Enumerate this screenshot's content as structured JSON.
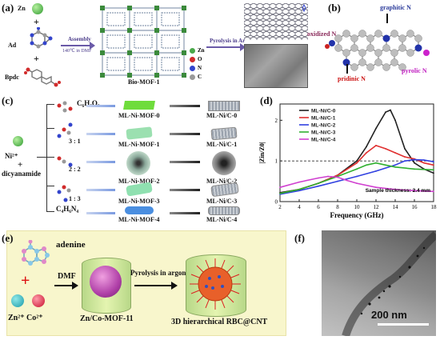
{
  "panel_labels": {
    "a": "(a)",
    "b": "(b)",
    "c": "(c)",
    "d": "(d)",
    "e": "(e)",
    "f": "(f)"
  },
  "panel_a": {
    "zn": "Zn",
    "ad": "Ad",
    "bpdc": "Bpdc",
    "assembly": "Assembly",
    "assembly_cond": "140℃ in DMF",
    "pyrolysis": "Pyrolysis in Ar",
    "mof_name": "Bio-MOF-1",
    "legend": [
      {
        "label": "Zn",
        "color": "#4aa84a"
      },
      {
        "label": "O",
        "color": "#d12b2b"
      },
      {
        "label": "N",
        "color": "#3344cc"
      },
      {
        "label": "C",
        "color": "#999999"
      }
    ]
  },
  "panel_b": {
    "graphitic": "graphitic N",
    "oxidized": "oxidized N",
    "pridinic": "pridinic N",
    "pyrolic": "pyrolic N"
  },
  "panel_c": {
    "ni": "Ni²⁺",
    "dicy": "dicyanamide",
    "top_formula": "C₆H₆O₆",
    "bottom_formula": "C₄H₆N₄",
    "ratios": [
      "3 : 1",
      "2 : 2",
      "1 : 3"
    ],
    "mofs": [
      "ML-Ni-MOF-0",
      "ML-Ni-MOF-1",
      "ML-Ni-MOF-2",
      "ML-Ni-MOF-3",
      "ML-Ni-MOF-4"
    ],
    "carbons": [
      "ML-Ni/C-0",
      "ML-Ni/C-1",
      "ML-Ni/C-2",
      "ML-Ni/C-3",
      "ML-Ni/C-4"
    ],
    "mof_colors": [
      "#6fdc3c",
      "#9be0b0",
      "#6a8a7a",
      "#8fe0b0",
      "#4a8ee0"
    ]
  },
  "chart_data": {
    "type": "line",
    "xlabel": "Frequency (GHz)",
    "ylabel": "|Zin/Z0|",
    "xlim": [
      2,
      18
    ],
    "ylim": [
      0,
      2.4
    ],
    "xticks": [
      2,
      4,
      6,
      8,
      10,
      12,
      14,
      16,
      18
    ],
    "yticks": [
      0,
      1,
      2
    ],
    "annotation": "Sample thickness: 2.4 mm",
    "reference_line": 1,
    "series": [
      {
        "name": "ML-Ni/C-0",
        "color": "#222222",
        "x": [
          2,
          4,
          6,
          8,
          10,
          11,
          12,
          13,
          13.5,
          14,
          15,
          16,
          17,
          18
        ],
        "y": [
          0.22,
          0.3,
          0.45,
          0.65,
          1.0,
          1.35,
          1.8,
          2.2,
          2.25,
          2.0,
          1.3,
          0.95,
          0.8,
          0.7
        ]
      },
      {
        "name": "ML-Ni/C-1",
        "color": "#e03030",
        "x": [
          2,
          4,
          6,
          8,
          10,
          11,
          12,
          13,
          14,
          15,
          16,
          17,
          18
        ],
        "y": [
          0.2,
          0.3,
          0.45,
          0.65,
          0.95,
          1.2,
          1.38,
          1.3,
          1.2,
          1.1,
          1.05,
          0.95,
          0.9
        ]
      },
      {
        "name": "ML-Ni/C-2",
        "color": "#3040e0",
        "x": [
          2,
          4,
          6,
          8,
          10,
          12,
          14,
          15,
          16,
          17,
          18
        ],
        "y": [
          0.18,
          0.27,
          0.38,
          0.5,
          0.62,
          0.75,
          0.9,
          1.0,
          1.03,
          1.02,
          0.98
        ]
      },
      {
        "name": "ML-Ni/C-3",
        "color": "#30b030",
        "x": [
          2,
          4,
          6,
          8,
          10,
          11,
          12,
          13,
          14,
          16,
          18
        ],
        "y": [
          0.2,
          0.3,
          0.45,
          0.62,
          0.8,
          0.9,
          0.95,
          0.9,
          0.85,
          0.8,
          0.78
        ]
      },
      {
        "name": "ML-Ni/C-4",
        "color": "#d040d0",
        "x": [
          2,
          4,
          6,
          7,
          8,
          9,
          10,
          12,
          14,
          16,
          18
        ],
        "y": [
          0.35,
          0.48,
          0.58,
          0.62,
          0.6,
          0.52,
          0.45,
          0.35,
          0.3,
          0.27,
          0.25
        ]
      }
    ]
  },
  "panel_e": {
    "adenine": "adenine",
    "dmf": "DMF",
    "pyrolysis": "Pyrolysis in argon",
    "ions": "Zn²⁺  Co²⁺",
    "mof": "Zn/Co-MOF-11",
    "product": "3D hierarchical RBC@CNT"
  },
  "panel_f": {
    "scale": "200 nm"
  }
}
